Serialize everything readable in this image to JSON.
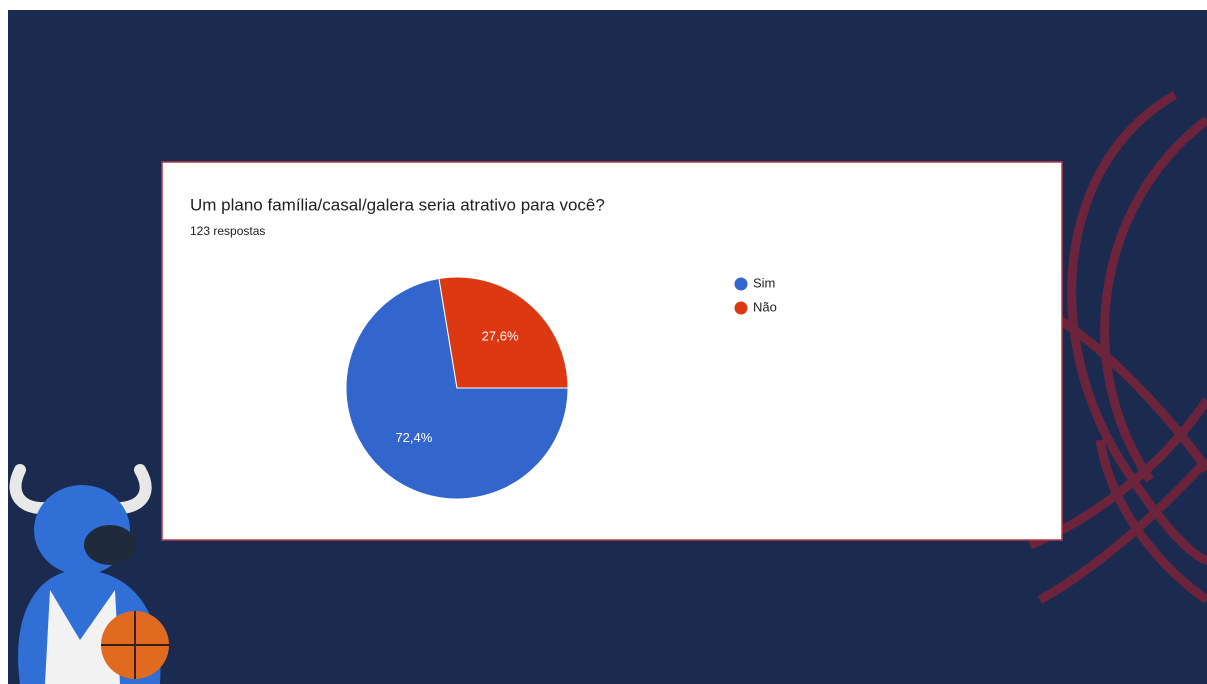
{
  "chart_data": {
    "type": "pie",
    "title": "Um plano família/casal/galera seria atrativo para você?",
    "subtitle": "123 respostas",
    "categories": [
      "Sim",
      "Não"
    ],
    "values": [
      72.4,
      27.6
    ],
    "value_labels": [
      "72,4%",
      "27,6%"
    ],
    "colors": [
      "#3366cc",
      "#dc3912"
    ]
  }
}
